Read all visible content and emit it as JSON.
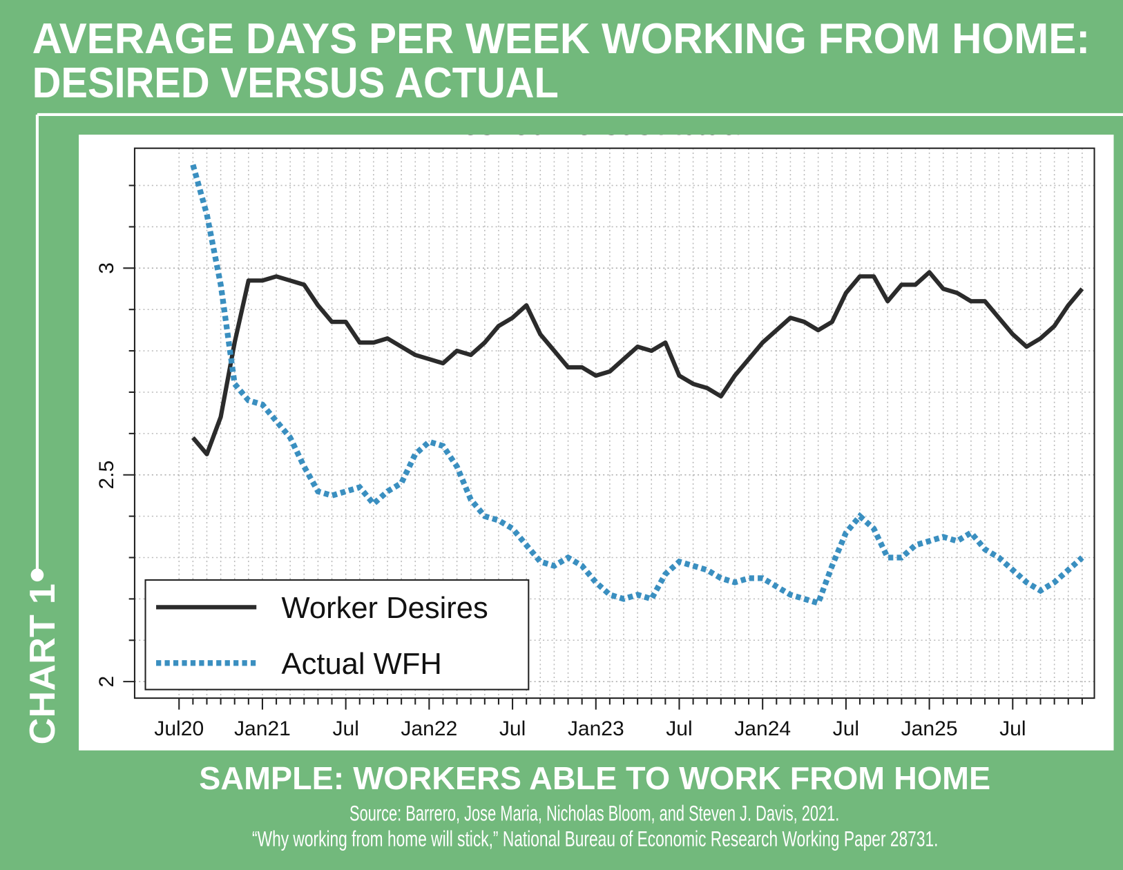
{
  "chart_data": {
    "type": "line",
    "title": [
      "AVERAGE DAYS PER WEEK WORKING FROM HOME:",
      "DESIRED VERSUS ACTUAL"
    ],
    "side_label": "CHART 1",
    "plot_title": "Desired Versus Actual",
    "subtitle": "SAMPLE: WORKERS ABLE TO WORK FROM HOME",
    "source": [
      "Source: Barrero, Jose Maria, Nicholas Bloom, and Steven J. Davis, 2021.",
      "“Why working from home will stick,” National Bureau of Economic Research Working Paper 28731."
    ],
    "categories": [
      "Jul20",
      null,
      null,
      null,
      null,
      null,
      "Jan21",
      null,
      null,
      null,
      null,
      null,
      "Jul",
      null,
      null,
      null,
      null,
      null,
      "Jan22",
      null,
      null,
      null,
      null,
      null,
      "Jul",
      null,
      null,
      null,
      null,
      null,
      "Jan23",
      null,
      null,
      null,
      null,
      null,
      "Jul",
      null,
      null,
      null,
      null,
      null,
      "Jan24",
      null,
      null,
      null,
      null,
      null,
      "Jul",
      null,
      null,
      null,
      null,
      null,
      "Jan25",
      null,
      null,
      null,
      null,
      null,
      "Jul",
      null,
      null,
      null,
      null,
      null
    ],
    "series": [
      {
        "name": "Worker Desires",
        "color": "#2b2b2b",
        "style": "solid",
        "values": [
          null,
          2.59,
          2.55,
          2.64,
          2.82,
          2.97,
          2.97,
          2.98,
          2.97,
          2.96,
          2.91,
          2.87,
          2.87,
          2.82,
          2.82,
          2.83,
          2.81,
          2.79,
          2.78,
          2.77,
          2.8,
          2.79,
          2.82,
          2.86,
          2.88,
          2.91,
          2.84,
          2.8,
          2.76,
          2.76,
          2.74,
          2.75,
          2.78,
          2.81,
          2.8,
          2.82,
          2.74,
          2.72,
          2.71,
          2.69,
          2.74,
          2.78,
          2.82,
          2.85,
          2.88,
          2.87,
          2.85,
          2.87,
          2.94,
          2.98,
          2.98,
          2.92,
          2.96,
          2.96,
          2.99,
          2.95,
          2.94,
          2.92,
          2.92,
          2.88,
          2.84,
          2.81,
          2.83,
          2.86,
          2.91,
          2.95
        ]
      },
      {
        "name": "Actual WFH",
        "color": "#3a8fc0",
        "style": "dotted",
        "values": [
          null,
          3.25,
          3.13,
          2.96,
          2.72,
          2.68,
          2.67,
          2.63,
          2.59,
          2.52,
          2.46,
          2.45,
          2.46,
          2.47,
          2.43,
          2.46,
          2.48,
          2.55,
          2.58,
          2.57,
          2.52,
          2.44,
          2.4,
          2.39,
          2.37,
          2.33,
          2.29,
          2.28,
          2.3,
          2.28,
          2.24,
          2.21,
          2.2,
          2.21,
          2.2,
          2.26,
          2.29,
          2.28,
          2.27,
          2.25,
          2.24,
          2.25,
          2.25,
          2.23,
          2.21,
          2.2,
          2.19,
          2.28,
          2.36,
          2.4,
          2.37,
          2.3,
          2.3,
          2.33,
          2.34,
          2.35,
          2.34,
          2.36,
          2.32,
          2.3,
          2.27,
          2.24,
          2.22,
          2.24,
          2.27,
          2.3
        ]
      }
    ],
    "ylim": [
      1.96,
      3.29
    ],
    "yticks": [
      2,
      2.5,
      3
    ],
    "yminorticks": [
      2.1,
      2.2,
      2.3,
      2.4,
      2.6,
      2.7,
      2.8,
      2.9,
      3.1,
      3.2
    ],
    "grid": true,
    "legend": "lower left"
  }
}
